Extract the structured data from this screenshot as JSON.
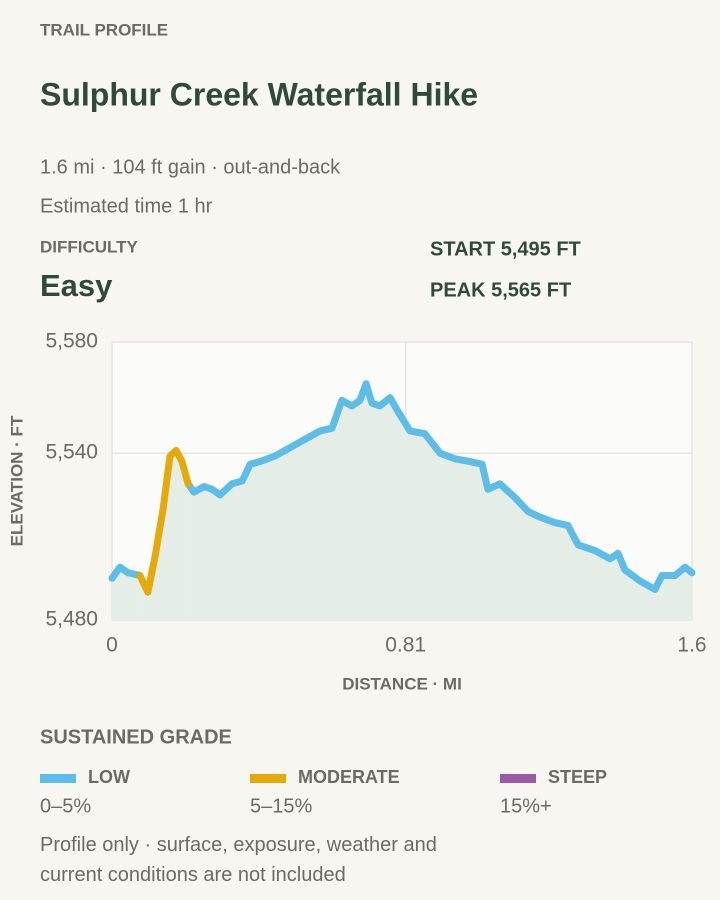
{
  "header": {
    "eyebrow": "TRAIL PROFILE",
    "title": "Sulphur Creek Waterfall Hike",
    "meta": "1.6 mi · 104 ft gain · out-and-back",
    "time": "Estimated time 1 hr"
  },
  "difficulty": {
    "label": "DIFFICULTY",
    "value": "Easy",
    "start": "START 5,495 FT",
    "peak": "PEAK 5,565 FT"
  },
  "chart_data": {
    "type": "line",
    "xlabel": "DISTANCE · MI",
    "ylabel": "ELEVATION · FT",
    "x": [
      0,
      0.022,
      0.044,
      0.077,
      0.099,
      0.119,
      0.141,
      0.16,
      0.177,
      0.193,
      0.21,
      0.226,
      0.254,
      0.276,
      0.298,
      0.331,
      0.359,
      0.381,
      0.408,
      0.45,
      0.491,
      0.532,
      0.574,
      0.607,
      0.634,
      0.662,
      0.684,
      0.701,
      0.717,
      0.739,
      0.767,
      0.789,
      0.822,
      0.863,
      0.905,
      0.946,
      0.988,
      1.021,
      1.037,
      1.07,
      1.112,
      1.148,
      1.181,
      1.222,
      1.258,
      1.286,
      1.332,
      1.374,
      1.396,
      1.415,
      1.457,
      1.498,
      1.517,
      1.553,
      1.581,
      1.6
    ],
    "series": [
      {
        "name": "LOW",
        "range": "0–5%",
        "color": "#5bbde8",
        "values": [
          5495,
          5499,
          5497,
          5496,
          null,
          null,
          null,
          null,
          null,
          null,
          5529,
          5526,
          5528,
          5527,
          5525,
          5529,
          5530,
          5536,
          5537,
          5539,
          5542,
          5545,
          5548,
          5549,
          5559,
          5557,
          5559,
          5565,
          5558,
          5557,
          5560,
          5555,
          5548,
          5547,
          5540,
          5538,
          5537,
          5536,
          5527,
          5529,
          5524,
          5519,
          5517,
          5515,
          5514,
          5507,
          5505,
          5502,
          5504,
          5498,
          5494,
          5491,
          5496,
          5496,
          5499,
          5497
        ]
      },
      {
        "name": "MODERATE",
        "range": "5–15%",
        "color": "#e5aa0a",
        "values": [
          null,
          null,
          null,
          5496,
          5490,
          5503,
          5520,
          5539,
          5541,
          5537,
          5529,
          null,
          null,
          null,
          null,
          null,
          null,
          null,
          null,
          null,
          null,
          null,
          null,
          null,
          null,
          null,
          null,
          null,
          null,
          null,
          null,
          null,
          null,
          null,
          null,
          null,
          null,
          null,
          null,
          null,
          null,
          null,
          null,
          null,
          null,
          null,
          null,
          null,
          null,
          null,
          null,
          null,
          null,
          null,
          null,
          null
        ]
      },
      {
        "name": "STEEP",
        "range": "15%+",
        "color": "#9b59a5",
        "values": [
          null,
          null,
          null,
          null,
          null,
          null,
          null,
          null,
          null,
          null,
          null,
          null,
          null,
          null,
          null,
          null,
          null,
          null,
          null,
          null,
          null,
          null,
          null,
          null,
          null,
          null,
          null,
          null,
          null,
          null,
          null,
          null,
          null,
          null,
          null,
          null,
          null,
          null,
          null,
          null,
          null,
          null,
          null,
          null,
          null,
          null,
          null,
          null,
          null,
          null,
          null,
          null,
          null,
          null,
          null,
          null
        ]
      }
    ],
    "xlim": [
      0,
      1.6
    ],
    "xticks": [
      0,
      0.81,
      1.6
    ],
    "ylim": [
      5480,
      5580
    ],
    "yticks": [
      {
        "value": 5480,
        "label": "5,480"
      },
      {
        "value": 5540,
        "label": "5,540"
      },
      {
        "value": 5580,
        "label": "5,580"
      }
    ],
    "grid": true,
    "legend_title": "SUSTAINED GRADE"
  },
  "footer": "Profile only · surface, exposure, weather and current conditions are not included"
}
